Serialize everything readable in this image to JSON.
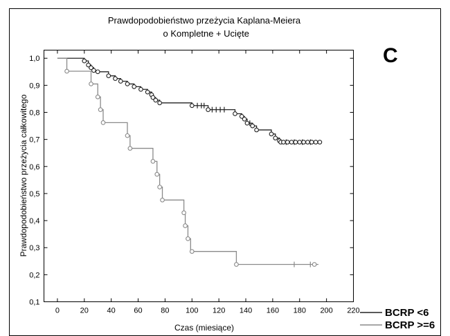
{
  "chart_data": {
    "type": "line",
    "title": "Prawdopodobieństwo przeżycia Kaplana-Meiera",
    "subtitle": {
      "complete_label": "o Kompletne",
      "censored_label": "+ Ucięte"
    },
    "xlabel": "Czas (miesiące)",
    "ylabel": "Prawdopodobieństwo przeżycia całkowitego",
    "xlim": [
      -10,
      220
    ],
    "ylim": [
      0.1,
      1.03
    ],
    "x_ticks": [
      0,
      20,
      40,
      60,
      80,
      100,
      120,
      140,
      160,
      180,
      200,
      220
    ],
    "x_tick_labels": [
      "0",
      "20",
      "40",
      "60",
      "80",
      "100",
      "120",
      "140",
      "160",
      "180",
      "200",
      "220"
    ],
    "y_ticks": [
      0.1,
      0.2,
      0.3,
      0.4,
      0.5,
      0.6,
      0.7,
      0.8,
      0.9,
      1.0
    ],
    "y_tick_labels": [
      "0,1",
      "0,2",
      "0,3",
      "0,4",
      "0,5",
      "0,6",
      "0,7",
      "0,8",
      "0,9",
      "1,0"
    ],
    "grid": false,
    "panel_label": "C",
    "series": [
      {
        "name": "BCRP <6",
        "color": "#222222",
        "x": [
          0,
          20,
          23,
          25,
          27,
          30,
          38,
          43,
          47,
          52,
          57,
          62,
          67,
          70,
          71,
          73,
          76,
          100,
          112,
          132,
          137,
          139,
          141,
          145,
          148,
          159,
          162,
          165,
          166
        ],
        "y": [
          1.0,
          0.99,
          0.975,
          0.965,
          0.955,
          0.95,
          0.935,
          0.925,
          0.915,
          0.905,
          0.895,
          0.885,
          0.875,
          0.865,
          0.855,
          0.845,
          0.835,
          0.825,
          0.81,
          0.795,
          0.785,
          0.775,
          0.76,
          0.75,
          0.735,
          0.72,
          0.705,
          0.695,
          0.69
        ],
        "end_x": 196,
        "events": [
          [
            20,
            0.99
          ],
          [
            23,
            0.975
          ],
          [
            25,
            0.965
          ],
          [
            27,
            0.955
          ],
          [
            30,
            0.95
          ],
          [
            38,
            0.935
          ],
          [
            43,
            0.925
          ],
          [
            47,
            0.915
          ],
          [
            52,
            0.905
          ],
          [
            57,
            0.895
          ],
          [
            62,
            0.885
          ],
          [
            67,
            0.875
          ],
          [
            70,
            0.865
          ],
          [
            71,
            0.855
          ],
          [
            73,
            0.845
          ],
          [
            76,
            0.835
          ],
          [
            100,
            0.825
          ],
          [
            112,
            0.81
          ],
          [
            132,
            0.795
          ],
          [
            137,
            0.785
          ],
          [
            139,
            0.775
          ],
          [
            141,
            0.76
          ],
          [
            145,
            0.75
          ],
          [
            148,
            0.735
          ],
          [
            159,
            0.72
          ],
          [
            162,
            0.705
          ],
          [
            165,
            0.695
          ],
          [
            166,
            0.69
          ],
          [
            168,
            0.69
          ],
          [
            171,
            0.69
          ],
          [
            174,
            0.69
          ],
          [
            177,
            0.69
          ],
          [
            180,
            0.69
          ],
          [
            183,
            0.69
          ],
          [
            186,
            0.69
          ],
          [
            189,
            0.69
          ],
          [
            192,
            0.69
          ],
          [
            195,
            0.69
          ]
        ],
        "censored": [
          [
            104,
            0.825
          ],
          [
            107,
            0.825
          ],
          [
            109,
            0.825
          ],
          [
            115,
            0.81
          ],
          [
            118,
            0.81
          ],
          [
            121,
            0.81
          ],
          [
            124,
            0.81
          ],
          [
            143,
            0.76
          ],
          [
            170,
            0.69
          ],
          [
            176,
            0.69
          ],
          [
            182,
            0.69
          ],
          [
            188,
            0.69
          ]
        ]
      },
      {
        "name": "BCRP >=6",
        "color": "#8a8a8a",
        "x": [
          0,
          7,
          25,
          30,
          32,
          34,
          52,
          54,
          71,
          74,
          76,
          78,
          94,
          95,
          97,
          99,
          100,
          133
        ],
        "y": [
          1.0,
          0.952,
          0.905,
          0.857,
          0.81,
          0.762,
          0.714,
          0.667,
          0.619,
          0.571,
          0.524,
          0.476,
          0.429,
          0.381,
          0.333,
          0.286,
          0.286,
          0.238
        ],
        "end_x": 194,
        "events": [
          [
            7,
            0.952
          ],
          [
            25,
            0.905
          ],
          [
            30,
            0.857
          ],
          [
            32,
            0.81
          ],
          [
            34,
            0.762
          ],
          [
            52,
            0.714
          ],
          [
            54,
            0.667
          ],
          [
            71,
            0.619
          ],
          [
            74,
            0.571
          ],
          [
            76,
            0.524
          ],
          [
            78,
            0.476
          ],
          [
            94,
            0.429
          ],
          [
            95,
            0.381
          ],
          [
            97,
            0.333
          ],
          [
            100,
            0.286
          ],
          [
            133,
            0.238
          ],
          [
            191,
            0.238
          ]
        ],
        "censored": [
          [
            176,
            0.238
          ],
          [
            188,
            0.238
          ]
        ]
      }
    ]
  }
}
